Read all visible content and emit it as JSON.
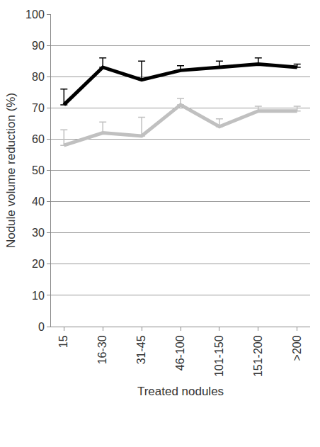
{
  "chart_data": {
    "type": "line",
    "x_label": "Treated nodules",
    "y_label": "Nodule volume reduction (%)",
    "categories": [
      "15",
      "16-30",
      "31-45",
      "46-100",
      "101-150",
      "151-200",
      ">200"
    ],
    "series": [
      {
        "color": "#000000",
        "values": [
          71,
          83,
          79,
          82,
          83,
          84,
          83
        ],
        "errors": [
          5,
          3,
          6,
          1.5,
          2,
          2,
          1
        ]
      },
      {
        "color": "#c0c0c0",
        "values": [
          58,
          62,
          61,
          71,
          64,
          69,
          69
        ],
        "errors": [
          5,
          3.5,
          6,
          2,
          2.5,
          1.5,
          1.5
        ]
      }
    ],
    "ylim": [
      0,
      100
    ],
    "yticks": [
      0,
      10,
      20,
      30,
      40,
      50,
      60,
      70,
      80,
      90,
      100
    ],
    "grid": true
  }
}
